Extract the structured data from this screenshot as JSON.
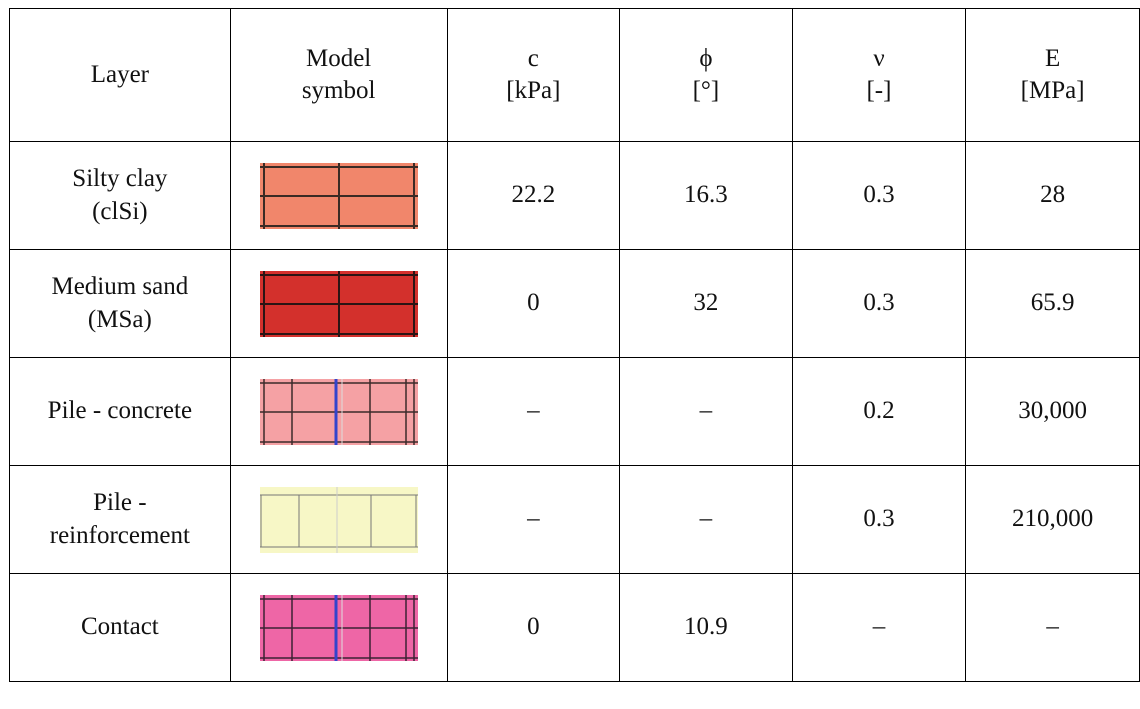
{
  "table": {
    "headers": [
      {
        "line1": "Layer",
        "line2": ""
      },
      {
        "line1": "Model",
        "line2": "symbol"
      },
      {
        "line1": "c",
        "line2": "[kPa]"
      },
      {
        "line1": "ϕ",
        "line2": "[°]"
      },
      {
        "line1": "ν",
        "line2": "[-]"
      },
      {
        "line1": "E",
        "line2": "[MPa]"
      }
    ],
    "rows": [
      {
        "layer_line1": "Silty clay",
        "layer_line2": "(clSi)",
        "symbol": {
          "fill": "#f1866b",
          "grid": "#3b2a24",
          "style": "grid-soil"
        },
        "c": "22.2",
        "phi": "16.3",
        "nu": "0.3",
        "E": "28"
      },
      {
        "layer_line1": "Medium sand",
        "layer_line2": "(MSa)",
        "symbol": {
          "fill": "#d3302c",
          "grid": "#2a1414",
          "style": "grid-soil"
        },
        "c": "0",
        "phi": "32",
        "nu": "0.3",
        "E": "65.9"
      },
      {
        "layer_line1": "Pile - concrete",
        "layer_line2": "",
        "symbol": {
          "fill": "#f5a1a4",
          "grid": "#3b2a2a",
          "accent": "#3344cc",
          "style": "grid-pile"
        },
        "c": "–",
        "phi": "–",
        "nu": "0.2",
        "E": "30,000"
      },
      {
        "layer_line1": "Pile -",
        "layer_line2": "reinforcement",
        "symbol": {
          "fill": "#f7f7c6",
          "grid": "#777777",
          "style": "grid-reinf"
        },
        "c": "–",
        "phi": "–",
        "nu": "0.3",
        "E": "210,000"
      },
      {
        "layer_line1": "Contact",
        "layer_line2": "",
        "symbol": {
          "fill": "#ee66a6",
          "grid": "#3b2233",
          "accent": "#3344cc",
          "style": "grid-contact"
        },
        "c": "0",
        "phi": "10.9",
        "nu": "–",
        "E": "–"
      }
    ]
  }
}
